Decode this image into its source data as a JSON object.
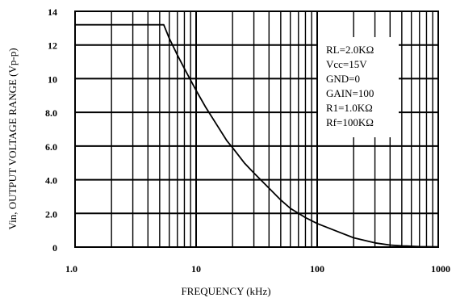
{
  "chart_data": {
    "type": "line",
    "title": "",
    "xlabel": "FREQUENCY (kHz)",
    "ylabel": "Vin, OUTPUT VOLTAGE RANGE (Vp-p)",
    "x_scale": "log",
    "xlim": [
      1,
      1000
    ],
    "ylim": [
      0,
      14
    ],
    "grid": true,
    "x_tick_labels": [
      {
        "x": 1,
        "label": "1.0"
      },
      {
        "x": 10,
        "label": "10"
      },
      {
        "x": 100,
        "label": "100"
      },
      {
        "x": 1000,
        "label": "1000"
      }
    ],
    "y_tick_labels": [
      {
        "y": 0,
        "label": "0"
      },
      {
        "y": 2,
        "label": "2.0"
      },
      {
        "y": 4,
        "label": "4.0"
      },
      {
        "y": 6,
        "label": "6.0"
      },
      {
        "y": 8,
        "label": "8.0"
      },
      {
        "y": 10,
        "label": "10"
      },
      {
        "y": 12,
        "label": "12"
      },
      {
        "y": 14,
        "label": "14"
      }
    ],
    "annotation_lines": [
      "RL=2.0KΩ",
      "Vcc=15V",
      "GND=0",
      "GAIN=100",
      "R1=1.0KΩ",
      "Rf=100KΩ"
    ],
    "series": [
      {
        "x": [
          1,
          1.5,
          2,
          3,
          4,
          5.4,
          6,
          7,
          8,
          10,
          12,
          15,
          18,
          20,
          25,
          30,
          40,
          50,
          60,
          80,
          100,
          150,
          200,
          300,
          400,
          500,
          550,
          700,
          1000
        ],
        "y": [
          13.2,
          13.2,
          13.2,
          13.2,
          13.2,
          13.2,
          12.4,
          11.4,
          10.6,
          9.3,
          8.3,
          7.2,
          6.3,
          5.9,
          5.0,
          4.4,
          3.5,
          2.8,
          2.3,
          1.75,
          1.4,
          0.9,
          0.55,
          0.25,
          0.12,
          0.07,
          0.06,
          0.03,
          0.02
        ]
      }
    ]
  }
}
